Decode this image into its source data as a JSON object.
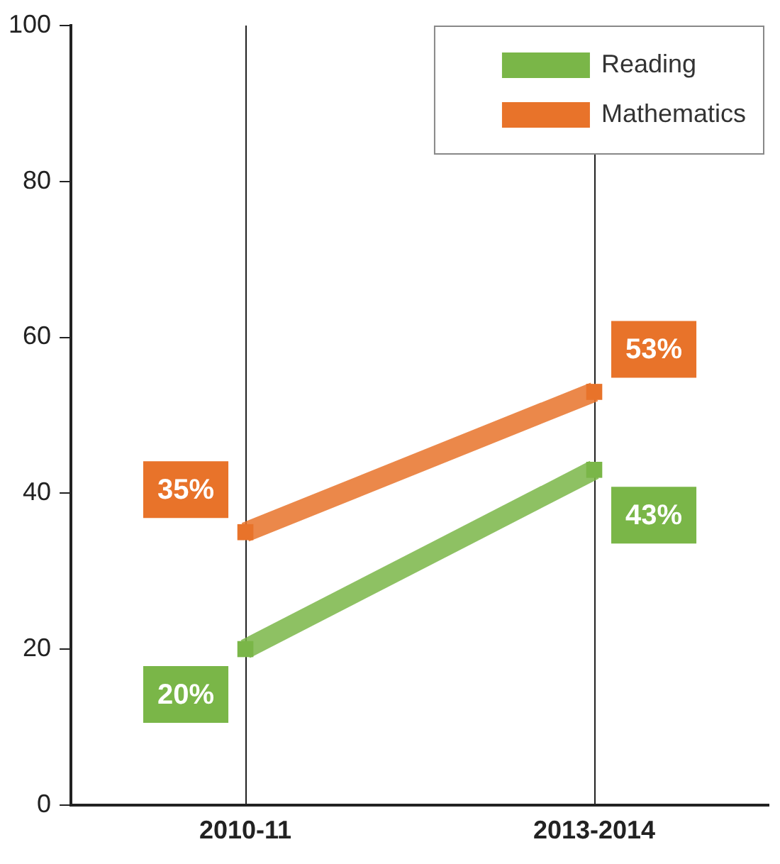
{
  "chart_data": {
    "type": "line",
    "categories": [
      "2010-11",
      "2013-2014"
    ],
    "series": [
      {
        "name": "Reading",
        "color": "#7ab648",
        "values": [
          20,
          43
        ],
        "value_labels": [
          "20%",
          "43%"
        ]
      },
      {
        "name": "Mathematics",
        "color": "#e8732a",
        "values": [
          35,
          53
        ],
        "value_labels": [
          "35%",
          "53%"
        ]
      }
    ],
    "ylim": [
      0,
      100
    ],
    "yticks": [
      0,
      20,
      40,
      60,
      80,
      100
    ],
    "grid": "x",
    "legend": "top right",
    "marker": "square",
    "line_style": "solid"
  }
}
